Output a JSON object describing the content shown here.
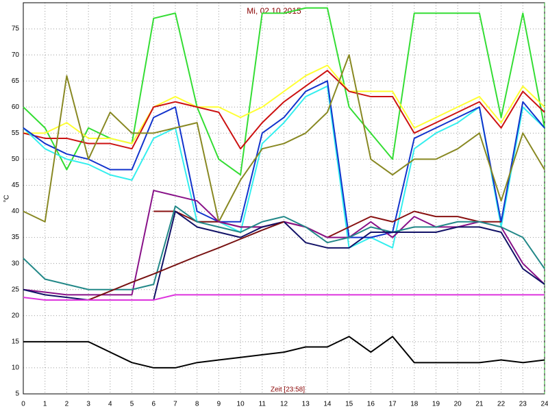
{
  "chart_data": {
    "type": "line",
    "title": "Mi, 02.10.2015",
    "xlabel": "Zeit [23:58]",
    "ylabel": "°C",
    "x": [
      0,
      1,
      2,
      3,
      4,
      5,
      6,
      7,
      8,
      9,
      10,
      11,
      12,
      13,
      14,
      15,
      16,
      17,
      18,
      19,
      20,
      21,
      22,
      23,
      24
    ],
    "xlim": [
      0,
      24
    ],
    "xticks": [
      0,
      1,
      2,
      3,
      4,
      5,
      6,
      7,
      8,
      9,
      10,
      11,
      12,
      13,
      14,
      15,
      16,
      17,
      18,
      19,
      20,
      21,
      22,
      23,
      24
    ],
    "ylim": [
      5,
      80
    ],
    "yticks": [
      5,
      10,
      15,
      20,
      25,
      30,
      35,
      40,
      45,
      50,
      55,
      60,
      65,
      70,
      75
    ],
    "grid": true,
    "series": [
      {
        "color": "#33dd33",
        "values": [
          60,
          56,
          48,
          56,
          54,
          53,
          77,
          78,
          60,
          50,
          47,
          78,
          78,
          79,
          79,
          60,
          55,
          50,
          78,
          78,
          78,
          78,
          58,
          78,
          56
        ]
      },
      {
        "color": "#ffff33",
        "values": [
          55,
          55,
          57,
          54,
          54,
          53,
          60,
          62,
          60,
          60,
          58,
          60,
          63,
          66,
          68,
          63,
          63,
          63,
          56,
          58,
          60,
          62,
          57,
          64,
          60
        ]
      },
      {
        "color": "#cc1111",
        "values": [
          55,
          54,
          54,
          53,
          53,
          52,
          60,
          61,
          60,
          59,
          52,
          57,
          61,
          64,
          67,
          63,
          62,
          62,
          55,
          57,
          59,
          61,
          56,
          63,
          59
        ]
      },
      {
        "color": "#33eeee",
        "values": [
          56,
          52,
          50,
          49,
          47,
          46,
          54,
          56,
          38,
          38,
          36,
          53,
          57,
          62,
          64,
          33,
          35,
          33,
          52,
          55,
          57,
          60,
          37,
          60,
          56
        ]
      },
      {
        "color": "#1133cc",
        "values": [
          56,
          53,
          51,
          50,
          48,
          48,
          58,
          60,
          40,
          38,
          38,
          55,
          58,
          63,
          65,
          35,
          35,
          36,
          54,
          56,
          58,
          60,
          38,
          61,
          56
        ]
      },
      {
        "color": "#888822",
        "values": [
          40,
          38,
          66,
          50,
          59,
          55,
          55,
          56,
          57,
          38,
          46,
          52,
          53,
          55,
          59,
          70,
          50,
          47,
          50,
          50,
          52,
          55,
          42,
          55,
          48
        ]
      },
      {
        "color": "#881111",
        "values": [
          null,
          null,
          null,
          null,
          null,
          null,
          40,
          40,
          38,
          38,
          37,
          37,
          38,
          37,
          35,
          37,
          39,
          38,
          40,
          39,
          39,
          38,
          38,
          null,
          null
        ]
      },
      {
        "color": "#881188",
        "values": [
          25,
          24.5,
          24,
          24,
          24,
          24,
          44,
          43,
          42,
          38,
          37,
          37,
          38,
          37,
          35,
          35,
          38,
          35,
          39,
          37,
          37,
          38,
          37,
          30,
          26
        ]
      },
      {
        "color": "#228888",
        "values": [
          31,
          27,
          26,
          25,
          25,
          25,
          26,
          41,
          38,
          37,
          36,
          38,
          39,
          37,
          34,
          35,
          37,
          36,
          37,
          37,
          38,
          38,
          37,
          35,
          29
        ]
      },
      {
        "color": "#111166",
        "values": [
          25,
          24,
          23.5,
          23,
          23,
          23,
          23,
          40,
          37,
          36,
          35,
          37,
          38,
          34,
          33,
          33,
          36,
          36,
          36,
          36,
          37,
          37,
          36,
          29,
          26
        ]
      },
      {
        "color": "#771111",
        "values": [
          null,
          null,
          null,
          23,
          24.7,
          26.4,
          28,
          29.7,
          31.4,
          33,
          34.7,
          36.4,
          38,
          null,
          null,
          null,
          null,
          null,
          null,
          null,
          null,
          null,
          null,
          null,
          null
        ]
      },
      {
        "color": "#dd33dd",
        "values": [
          23.5,
          23,
          23,
          23,
          23,
          23,
          23,
          24,
          24,
          24,
          24,
          24,
          24,
          24,
          24,
          24,
          24,
          24,
          24,
          24,
          24,
          24,
          24,
          24,
          24
        ]
      },
      {
        "color": "#000000",
        "values": [
          15,
          15,
          15,
          15,
          13,
          11,
          10,
          10,
          11,
          11.5,
          12,
          12.5,
          13,
          14,
          14,
          16,
          13,
          16,
          11,
          11,
          11,
          11,
          11.5,
          11,
          11.5
        ]
      }
    ]
  }
}
